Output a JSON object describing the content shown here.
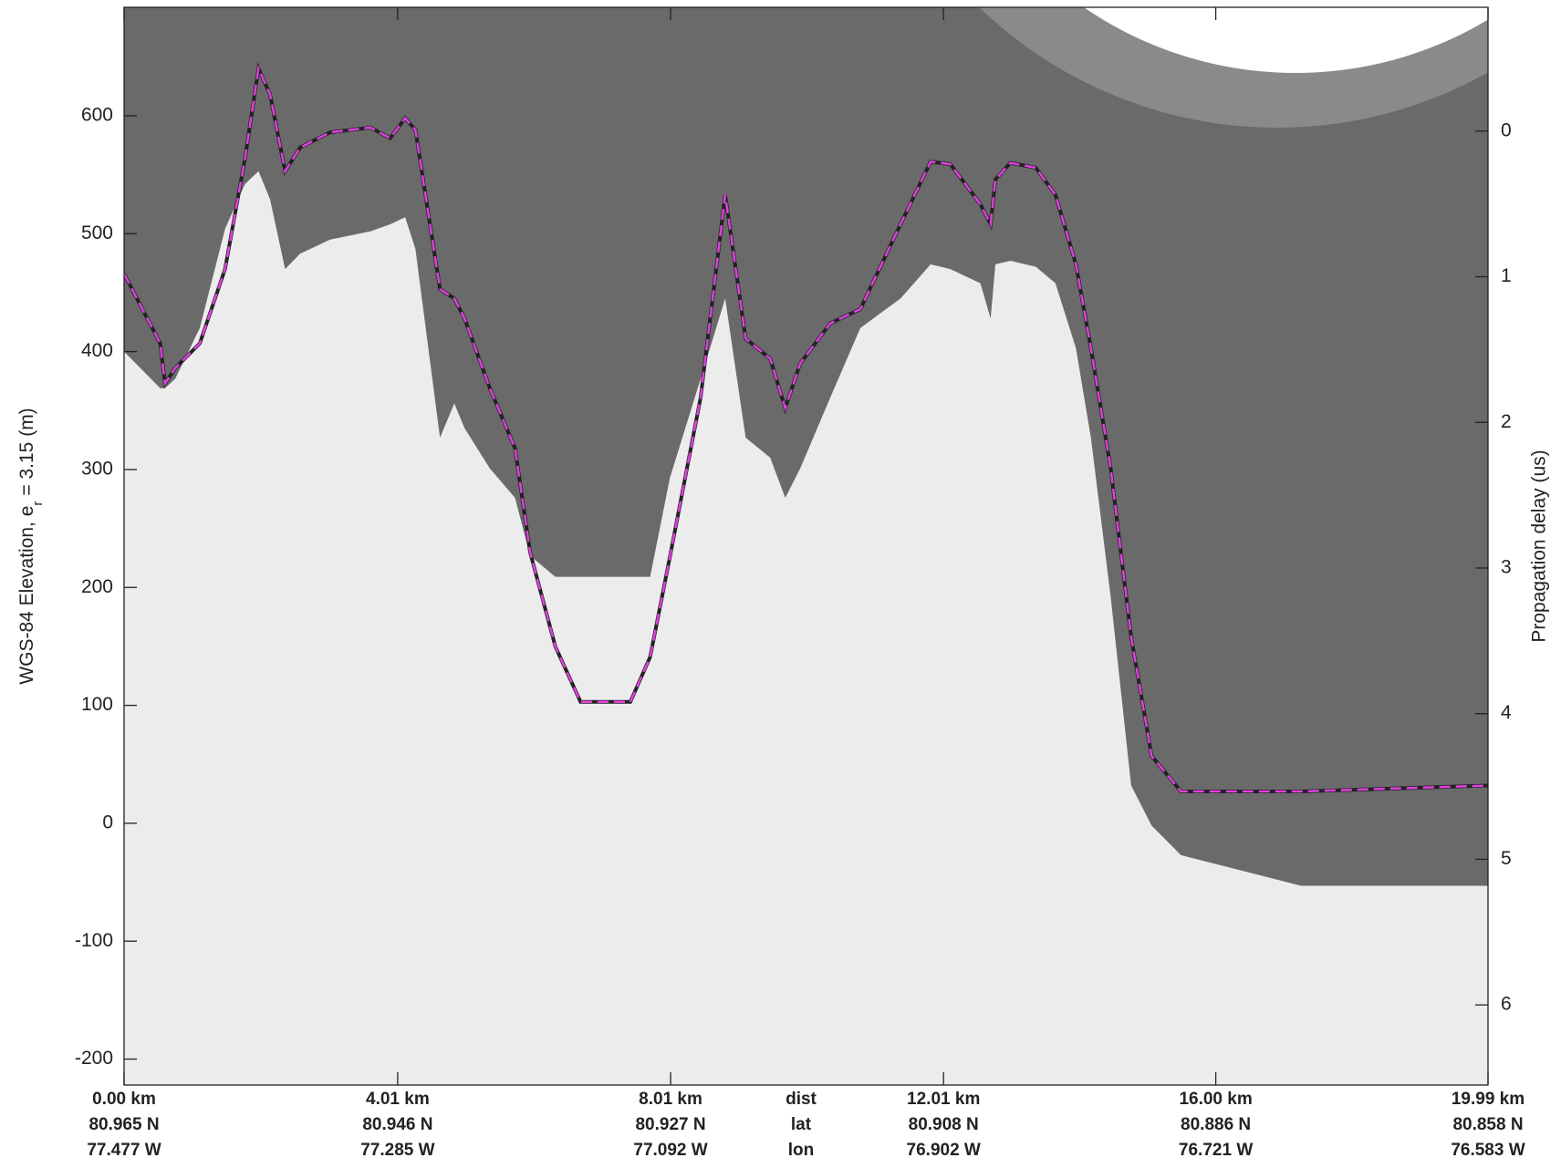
{
  "chart_data": {
    "type": "line",
    "ylabel_parts": [
      "WGS-84 Elevation, e",
      "r",
      "= 3.15 (m)"
    ],
    "y2label": "Propagation delay (us)",
    "x": [
      0,
      0.53,
      0.6,
      0.75,
      1.11,
      1.48,
      1.77,
      1.97,
      2.14,
      2.36,
      2.58,
      3.02,
      3.61,
      3.9,
      4.12,
      4.27,
      4.63,
      4.84,
      4.99,
      5.36,
      5.73,
      5.95,
      6.32,
      6.69,
      7.42,
      7.71,
      8.0,
      8.45,
      8.81,
      9.11,
      9.47,
      9.69,
      9.91,
      10.35,
      10.79,
      11.38,
      11.82,
      12.11,
      12.55,
      12.7,
      12.77,
      12.99,
      13.36,
      13.65,
      13.95,
      14.17,
      14.46,
      14.76,
      15.06,
      15.49,
      17.25,
      19.99
    ],
    "series": [
      {
        "color": "#e040e0",
        "values": [
          466,
          407,
          373,
          386,
          407,
          470,
          563,
          640,
          618,
          553,
          573,
          586,
          590,
          581,
          598,
          588,
          453,
          445,
          428,
          369,
          318,
          230,
          150,
          103,
          103,
          141,
          226,
          361,
          533,
          411,
          394,
          352,
          390,
          424,
          436,
          508,
          561,
          559,
          525,
          508,
          546,
          560,
          556,
          533,
          474,
          403,
          301,
          158,
          57,
          27,
          27,
          32
        ]
      },
      {
        "color": "#ececec",
        "values": [
          400,
          369,
          369,
          377,
          420,
          504,
          542,
          553,
          529,
          470,
          483,
          495,
          502,
          508,
          514,
          487,
          327,
          356,
          335,
          301,
          276,
          227,
          209,
          209,
          209,
          209,
          293,
          377,
          445,
          327,
          310,
          276,
          301,
          361,
          420,
          445,
          474,
          470,
          458,
          428,
          474,
          477,
          472,
          458,
          403,
          327,
          192,
          32,
          -2,
          -27,
          -53,
          -53
        ]
      }
    ],
    "xlim": [
      0,
      19.99
    ],
    "xticks": [
      {
        "value": 0,
        "label": "0.00 km"
      },
      {
        "value": 4.01,
        "label": "4.01 km"
      },
      {
        "value": 8.01,
        "label": "8.01 km"
      },
      {
        "value": 12.01,
        "label": "12.01 km"
      },
      {
        "value": 16.0,
        "label": "16.00 km"
      },
      {
        "value": 19.99,
        "label": "19.99 km"
      }
    ],
    "xtick_lat": [
      "80.965 N",
      "80.946 N",
      "80.927 N",
      "80.908 N",
      "80.886 N",
      "80.858 N"
    ],
    "xtick_lon": [
      "77.477 W",
      "77.285 W",
      "77.092 W",
      "76.902 W",
      "76.721 W",
      "76.583 W"
    ],
    "xrow_labels": [
      "dist",
      "lat",
      "lon"
    ],
    "ylim": [
      -222,
      692
    ],
    "yticks": [
      -200,
      -100,
      0,
      100,
      200,
      300,
      400,
      500,
      600
    ],
    "y2lim": [
      -0.85,
      6.55
    ],
    "y2ticks": [
      0,
      1,
      2,
      3,
      4,
      5,
      6
    ]
  }
}
